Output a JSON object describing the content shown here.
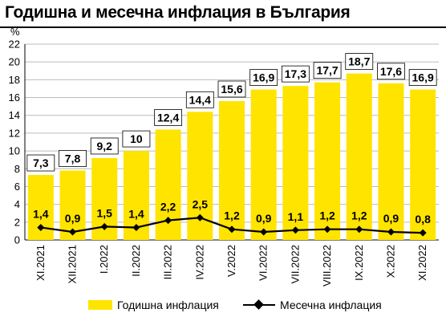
{
  "title": "Годишна и месечна инфлация в България",
  "colors": {
    "bar": "#ffe400",
    "line": "#000000",
    "grid": "#bbbbbb"
  },
  "chart_data": {
    "type": "bar",
    "title": "Годишна и месечна инфлация в България",
    "ylabel": "%",
    "ylim": [
      0,
      22
    ],
    "yticks": [
      0,
      2,
      4,
      6,
      8,
      10,
      12,
      14,
      16,
      18,
      20,
      22
    ],
    "grid": true,
    "legend_position": "bottom",
    "categories": [
      "XI.2021",
      "XII.2021",
      "I.2022",
      "II.2022",
      "III.2022",
      "IV.2022",
      "V.2022",
      "VI.2022",
      "VII.2022",
      "VIII.2022",
      "IX.2022",
      "X.2022",
      "XI.2022"
    ],
    "series": [
      {
        "name": "Годишна инфлация",
        "type": "bar",
        "values": [
          7.3,
          7.8,
          9.2,
          10,
          12.4,
          14.4,
          15.6,
          16.9,
          17.3,
          17.7,
          18.7,
          17.6,
          16.9
        ],
        "labels": [
          "7,3",
          "7,8",
          "9,2",
          "10",
          "12,4",
          "14,4",
          "15,6",
          "16,9",
          "17,3",
          "17,7",
          "18,7",
          "17,6",
          "16,9"
        ]
      },
      {
        "name": "Месечна инфлация",
        "type": "line",
        "values": [
          1.4,
          0.9,
          1.5,
          1.4,
          2.2,
          2.5,
          1.2,
          0.9,
          1.1,
          1.2,
          1.2,
          0.9,
          0.8
        ],
        "labels": [
          "1,4",
          "0,9",
          "1,5",
          "1,4",
          "2,2",
          "2,5",
          "1,2",
          "0,9",
          "1,1",
          "1,2",
          "1,2",
          "0,9",
          "0,8"
        ]
      }
    ]
  }
}
